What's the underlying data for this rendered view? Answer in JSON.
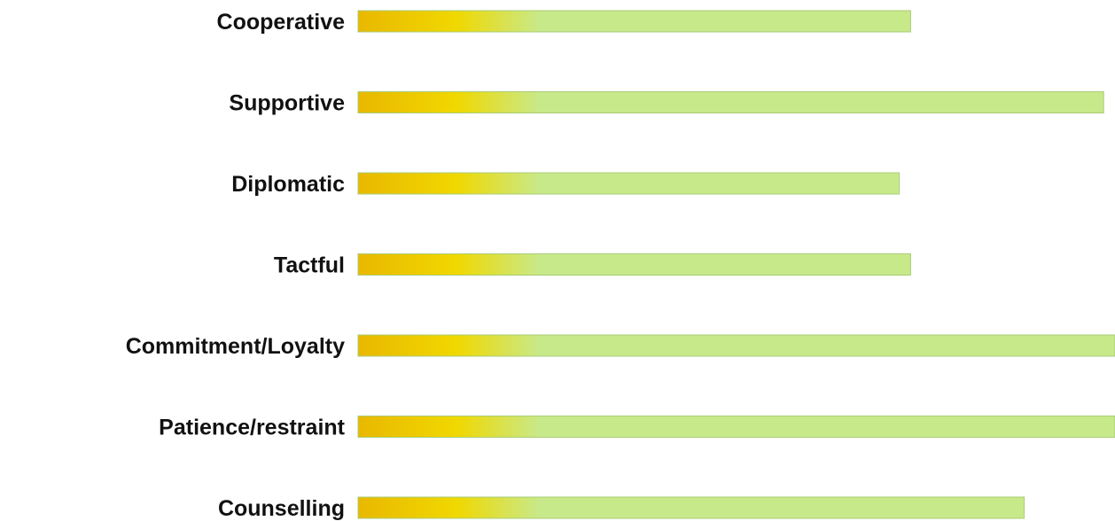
{
  "chart_data": {
    "type": "bar",
    "orientation": "horizontal",
    "categories": [
      "Cooperative",
      "Supportive",
      "Diplomatic",
      "Tactful",
      "Commitment/Loyalty",
      "Patience/restraint",
      "Counselling"
    ],
    "values": [
      73,
      98.5,
      71.5,
      73,
      100,
      100,
      88
    ],
    "xlim": [
      0,
      100
    ],
    "title": "",
    "xlabel": "",
    "ylabel": "",
    "grid": false,
    "legend": "none",
    "colors": {
      "gradient_start": "#e9b800",
      "gradient_mid": "#f0d800",
      "gradient_end": "#c8e98a",
      "bar_fill": "#c8e98a",
      "bar_edge": "#a9cc78",
      "label": "#111111"
    }
  }
}
